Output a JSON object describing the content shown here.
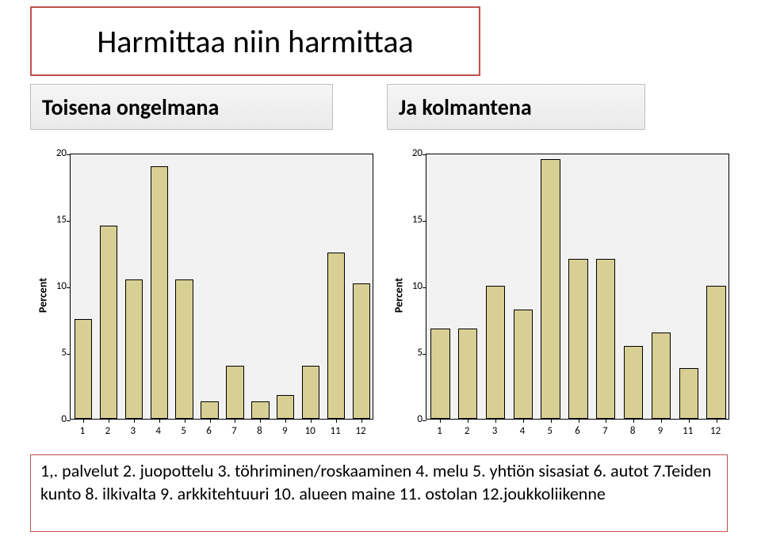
{
  "title": "Harmittaa niin harmittaa",
  "subtitles": {
    "left": "Toisena ongelmana",
    "right": "Ja kolmantena"
  },
  "chart_left": {
    "type": "bar",
    "ylabel": "Percent",
    "ylim": [
      0,
      20
    ],
    "yticks": [
      0,
      5,
      10,
      15,
      20
    ],
    "categories": [
      "1",
      "2",
      "3",
      "4",
      "5",
      "6",
      "7",
      "8",
      "9",
      "10",
      "11",
      "12"
    ],
    "values": [
      7.5,
      14.5,
      10.5,
      19,
      10.5,
      1.3,
      4,
      1.3,
      1.8,
      4,
      12.5,
      10.2
    ],
    "bar_color": "#d8cf94",
    "bar_border": "#000000",
    "background": "#f2f2f2",
    "axis_fontsize": 13,
    "label_fontsize": 14,
    "bar_width": 0.7
  },
  "chart_right": {
    "type": "bar",
    "ylabel": "Percent",
    "ylim": [
      0,
      20
    ],
    "yticks": [
      0,
      5,
      10,
      15,
      20
    ],
    "categories": [
      "1",
      "2",
      "3",
      "4",
      "5",
      "6",
      "7",
      "8",
      "9",
      "11",
      "12"
    ],
    "values": [
      6.8,
      6.8,
      10,
      8.2,
      19.5,
      12,
      12,
      5.5,
      6.5,
      3.8,
      10
    ],
    "bar_color": "#d8cf94",
    "bar_border": "#000000",
    "background": "#f2f2f2",
    "axis_fontsize": 13,
    "label_fontsize": 14,
    "bar_width": 0.7
  },
  "caption": "1,. palvelut 2. juopottelu 3. töhriminen/roskaaminen 4. melu 5. yhtiön sisasiat 6. autot 7.Teiden kunto 8. ilkivalta 9. arkkitehtuuri 10. alueen maine 11. ostolan 12.joukkoliikenne",
  "colors": {
    "title_border": "#c0504d",
    "subtitle_border": "#bfbfbf",
    "caption_border": "#c0504d",
    "page_bg": "#ffffff"
  }
}
